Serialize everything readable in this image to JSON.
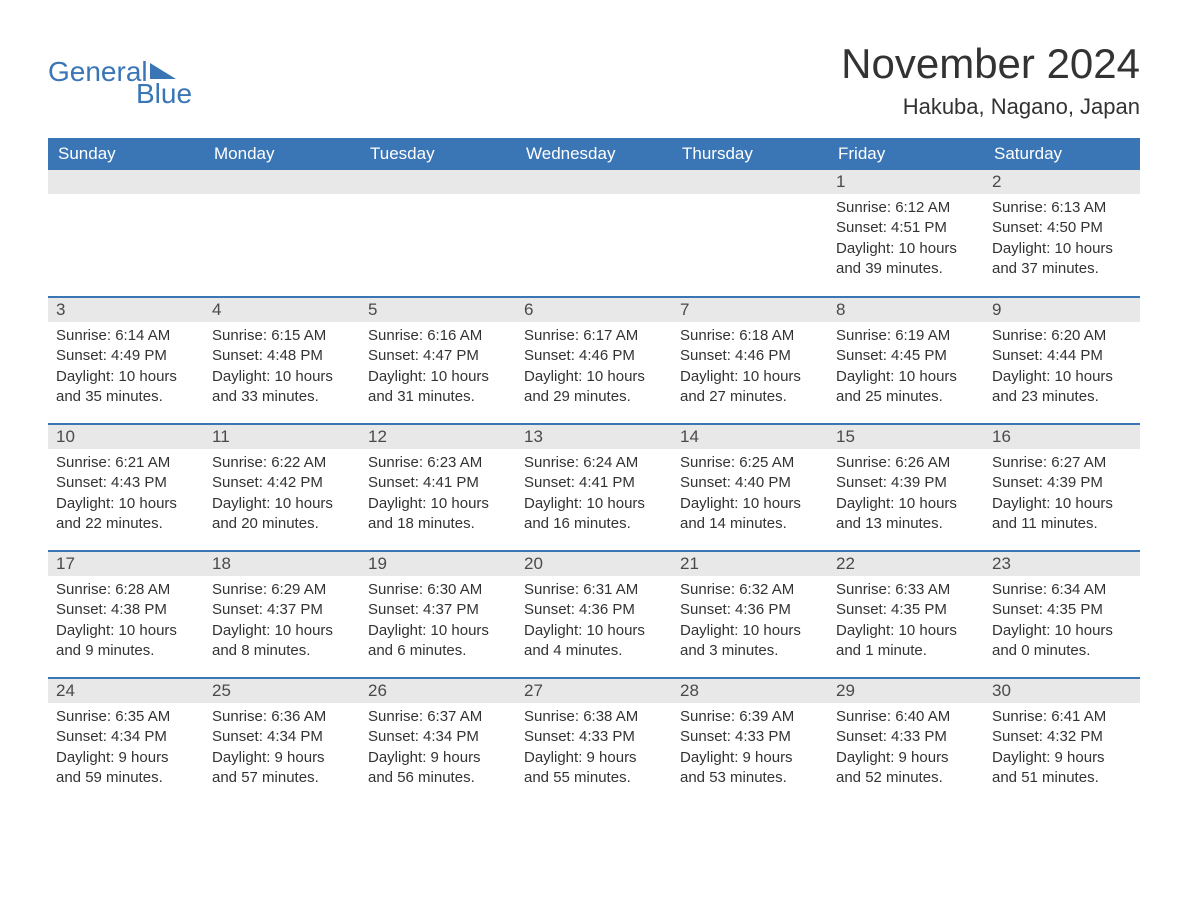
{
  "brand": {
    "general": "General",
    "blue": "Blue"
  },
  "title": "November 2024",
  "location": "Hakuba, Nagano, Japan",
  "colors": {
    "header_bg": "#3a75b5",
    "header_text": "#ffffff",
    "daynum_bg": "#e8e8e8",
    "week_border": "#3a75b5",
    "text": "#333333",
    "background": "#ffffff"
  },
  "day_headers": [
    "Sunday",
    "Monday",
    "Tuesday",
    "Wednesday",
    "Thursday",
    "Friday",
    "Saturday"
  ],
  "weeks": [
    [
      {
        "blank": true
      },
      {
        "blank": true
      },
      {
        "blank": true
      },
      {
        "blank": true
      },
      {
        "blank": true
      },
      {
        "day": "1",
        "sunrise": "Sunrise: 6:12 AM",
        "sunset": "Sunset: 4:51 PM",
        "daylight1": "Daylight: 10 hours",
        "daylight2": "and 39 minutes."
      },
      {
        "day": "2",
        "sunrise": "Sunrise: 6:13 AM",
        "sunset": "Sunset: 4:50 PM",
        "daylight1": "Daylight: 10 hours",
        "daylight2": "and 37 minutes."
      }
    ],
    [
      {
        "day": "3",
        "sunrise": "Sunrise: 6:14 AM",
        "sunset": "Sunset: 4:49 PM",
        "daylight1": "Daylight: 10 hours",
        "daylight2": "and 35 minutes."
      },
      {
        "day": "4",
        "sunrise": "Sunrise: 6:15 AM",
        "sunset": "Sunset: 4:48 PM",
        "daylight1": "Daylight: 10 hours",
        "daylight2": "and 33 minutes."
      },
      {
        "day": "5",
        "sunrise": "Sunrise: 6:16 AM",
        "sunset": "Sunset: 4:47 PM",
        "daylight1": "Daylight: 10 hours",
        "daylight2": "and 31 minutes."
      },
      {
        "day": "6",
        "sunrise": "Sunrise: 6:17 AM",
        "sunset": "Sunset: 4:46 PM",
        "daylight1": "Daylight: 10 hours",
        "daylight2": "and 29 minutes."
      },
      {
        "day": "7",
        "sunrise": "Sunrise: 6:18 AM",
        "sunset": "Sunset: 4:46 PM",
        "daylight1": "Daylight: 10 hours",
        "daylight2": "and 27 minutes."
      },
      {
        "day": "8",
        "sunrise": "Sunrise: 6:19 AM",
        "sunset": "Sunset: 4:45 PM",
        "daylight1": "Daylight: 10 hours",
        "daylight2": "and 25 minutes."
      },
      {
        "day": "9",
        "sunrise": "Sunrise: 6:20 AM",
        "sunset": "Sunset: 4:44 PM",
        "daylight1": "Daylight: 10 hours",
        "daylight2": "and 23 minutes."
      }
    ],
    [
      {
        "day": "10",
        "sunrise": "Sunrise: 6:21 AM",
        "sunset": "Sunset: 4:43 PM",
        "daylight1": "Daylight: 10 hours",
        "daylight2": "and 22 minutes."
      },
      {
        "day": "11",
        "sunrise": "Sunrise: 6:22 AM",
        "sunset": "Sunset: 4:42 PM",
        "daylight1": "Daylight: 10 hours",
        "daylight2": "and 20 minutes."
      },
      {
        "day": "12",
        "sunrise": "Sunrise: 6:23 AM",
        "sunset": "Sunset: 4:41 PM",
        "daylight1": "Daylight: 10 hours",
        "daylight2": "and 18 minutes."
      },
      {
        "day": "13",
        "sunrise": "Sunrise: 6:24 AM",
        "sunset": "Sunset: 4:41 PM",
        "daylight1": "Daylight: 10 hours",
        "daylight2": "and 16 minutes."
      },
      {
        "day": "14",
        "sunrise": "Sunrise: 6:25 AM",
        "sunset": "Sunset: 4:40 PM",
        "daylight1": "Daylight: 10 hours",
        "daylight2": "and 14 minutes."
      },
      {
        "day": "15",
        "sunrise": "Sunrise: 6:26 AM",
        "sunset": "Sunset: 4:39 PM",
        "daylight1": "Daylight: 10 hours",
        "daylight2": "and 13 minutes."
      },
      {
        "day": "16",
        "sunrise": "Sunrise: 6:27 AM",
        "sunset": "Sunset: 4:39 PM",
        "daylight1": "Daylight: 10 hours",
        "daylight2": "and 11 minutes."
      }
    ],
    [
      {
        "day": "17",
        "sunrise": "Sunrise: 6:28 AM",
        "sunset": "Sunset: 4:38 PM",
        "daylight1": "Daylight: 10 hours",
        "daylight2": "and 9 minutes."
      },
      {
        "day": "18",
        "sunrise": "Sunrise: 6:29 AM",
        "sunset": "Sunset: 4:37 PM",
        "daylight1": "Daylight: 10 hours",
        "daylight2": "and 8 minutes."
      },
      {
        "day": "19",
        "sunrise": "Sunrise: 6:30 AM",
        "sunset": "Sunset: 4:37 PM",
        "daylight1": "Daylight: 10 hours",
        "daylight2": "and 6 minutes."
      },
      {
        "day": "20",
        "sunrise": "Sunrise: 6:31 AM",
        "sunset": "Sunset: 4:36 PM",
        "daylight1": "Daylight: 10 hours",
        "daylight2": "and 4 minutes."
      },
      {
        "day": "21",
        "sunrise": "Sunrise: 6:32 AM",
        "sunset": "Sunset: 4:36 PM",
        "daylight1": "Daylight: 10 hours",
        "daylight2": "and 3 minutes."
      },
      {
        "day": "22",
        "sunrise": "Sunrise: 6:33 AM",
        "sunset": "Sunset: 4:35 PM",
        "daylight1": "Daylight: 10 hours",
        "daylight2": "and 1 minute."
      },
      {
        "day": "23",
        "sunrise": "Sunrise: 6:34 AM",
        "sunset": "Sunset: 4:35 PM",
        "daylight1": "Daylight: 10 hours",
        "daylight2": "and 0 minutes."
      }
    ],
    [
      {
        "day": "24",
        "sunrise": "Sunrise: 6:35 AM",
        "sunset": "Sunset: 4:34 PM",
        "daylight1": "Daylight: 9 hours",
        "daylight2": "and 59 minutes."
      },
      {
        "day": "25",
        "sunrise": "Sunrise: 6:36 AM",
        "sunset": "Sunset: 4:34 PM",
        "daylight1": "Daylight: 9 hours",
        "daylight2": "and 57 minutes."
      },
      {
        "day": "26",
        "sunrise": "Sunrise: 6:37 AM",
        "sunset": "Sunset: 4:34 PM",
        "daylight1": "Daylight: 9 hours",
        "daylight2": "and 56 minutes."
      },
      {
        "day": "27",
        "sunrise": "Sunrise: 6:38 AM",
        "sunset": "Sunset: 4:33 PM",
        "daylight1": "Daylight: 9 hours",
        "daylight2": "and 55 minutes."
      },
      {
        "day": "28",
        "sunrise": "Sunrise: 6:39 AM",
        "sunset": "Sunset: 4:33 PM",
        "daylight1": "Daylight: 9 hours",
        "daylight2": "and 53 minutes."
      },
      {
        "day": "29",
        "sunrise": "Sunrise: 6:40 AM",
        "sunset": "Sunset: 4:33 PM",
        "daylight1": "Daylight: 9 hours",
        "daylight2": "and 52 minutes."
      },
      {
        "day": "30",
        "sunrise": "Sunrise: 6:41 AM",
        "sunset": "Sunset: 4:32 PM",
        "daylight1": "Daylight: 9 hours",
        "daylight2": "and 51 minutes."
      }
    ]
  ]
}
